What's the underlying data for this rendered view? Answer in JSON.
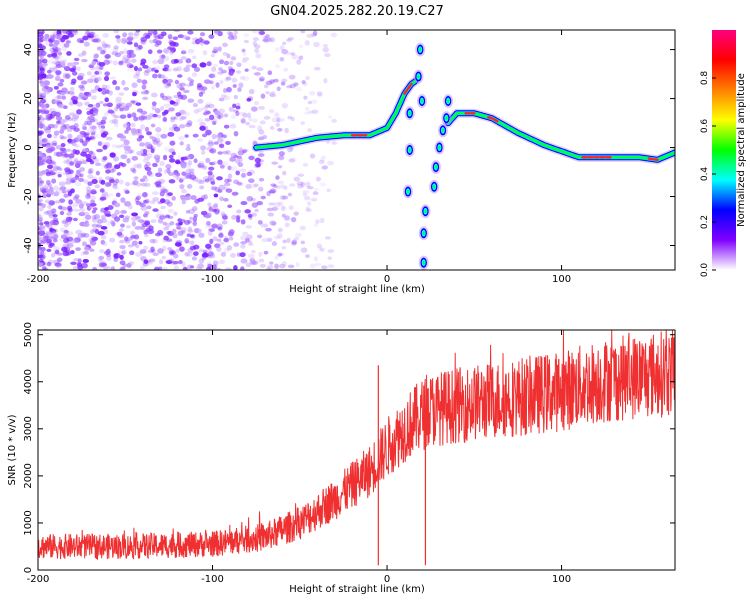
{
  "figure": {
    "title": "GN04.2025.282.20.19.C27"
  },
  "chart_data": [
    {
      "type": "heatmap",
      "title": "GN04.2025.282.20.19.C27",
      "xlabel": "Height of straight line (km)",
      "ylabel": "Frequency (Hz)",
      "xlim": [
        -200,
        165
      ],
      "ylim": [
        -50,
        48
      ],
      "x_ticks": [
        -200,
        -100,
        0,
        100
      ],
      "y_ticks": [
        -40,
        -20,
        0,
        20,
        40
      ],
      "colorbar": {
        "label": "Normalized spectral amplitude",
        "range": [
          0,
          1
        ],
        "ticks": [
          0,
          0.2,
          0.4,
          0.6,
          0.8
        ],
        "colors": [
          "#ffffff",
          "#8000ff",
          "#0000ff",
          "#00ffff",
          "#00ff00",
          "#ffff00",
          "#ff8000",
          "#ff0000",
          "#ff0080"
        ]
      },
      "ridge": {
        "x": [
          -75,
          -60,
          -40,
          -25,
          -10,
          0,
          5,
          10,
          14,
          16,
          18,
          20,
          22,
          25,
          30,
          35,
          40,
          50,
          60,
          75,
          90,
          110,
          130,
          145,
          155,
          165
        ],
        "y": [
          0,
          1,
          4,
          5,
          5,
          8,
          14,
          22,
          26,
          27,
          24,
          15,
          5,
          -15,
          -40,
          10,
          14,
          14,
          12,
          6,
          1,
          -4,
          -4,
          -4,
          -5,
          -2
        ]
      },
      "noise_extent_km": [
        -200,
        -40
      ]
    },
    {
      "type": "line",
      "xlabel": "Height of straight line (km)",
      "ylabel": "SNR (10 * v/v)",
      "xlim": [
        -200,
        165
      ],
      "ylim": [
        0,
        5100
      ],
      "x_ticks": [
        -200,
        -100,
        0,
        100
      ],
      "y_ticks": [
        0,
        1000,
        2000,
        3000,
        4000,
        5000
      ],
      "series": [
        {
          "name": "SNR",
          "color": "#f03030",
          "x": [
            -200,
            -150,
            -100,
            -70,
            -50,
            -30,
            -10,
            0,
            10,
            20,
            25,
            40,
            60,
            80,
            100,
            120,
            140,
            165
          ],
          "y": [
            500,
            500,
            550,
            700,
            1000,
            1500,
            2100,
            2600,
            3000,
            3300,
            3400,
            3500,
            3600,
            3700,
            3800,
            4000,
            4100,
            4200
          ]
        }
      ],
      "spikes": [
        {
          "x": -5,
          "y": 4350
        },
        {
          "x": -5,
          "y": 100
        },
        {
          "x": 22,
          "y": 100
        }
      ]
    }
  ]
}
